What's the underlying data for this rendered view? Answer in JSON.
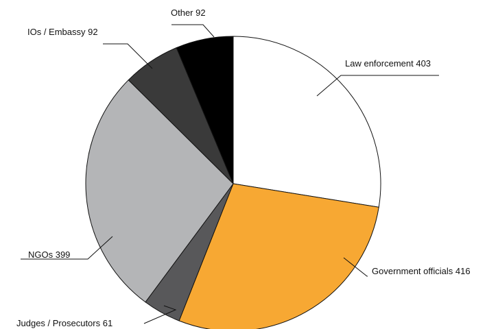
{
  "chart_data": {
    "type": "pie",
    "title": "",
    "slices": [
      {
        "label": "Law enforcement",
        "value": 403,
        "color": "#ffffff",
        "text": "Law enforcement 403"
      },
      {
        "label": "Government officials",
        "value": 416,
        "color": "#f7a833",
        "text": "Government officials 416"
      },
      {
        "label": "Judges / Prosecutors",
        "value": 61,
        "color": "#58585a",
        "text": "Judges / Prosecutors 61"
      },
      {
        "label": "NGOs",
        "value": 399,
        "color": "#b4b5b7",
        "text": "NGOs 399"
      },
      {
        "label": "IOs / Embassy",
        "value": 92,
        "color": "#3a3a3a",
        "text": "IOs / Embassy 92"
      },
      {
        "label": "Other",
        "value": 92,
        "color": "#000000",
        "text": "Other 92"
      }
    ],
    "start": "12 o'clock",
    "direction": "clockwise",
    "legend": "none (direct labels with leader lines)"
  }
}
